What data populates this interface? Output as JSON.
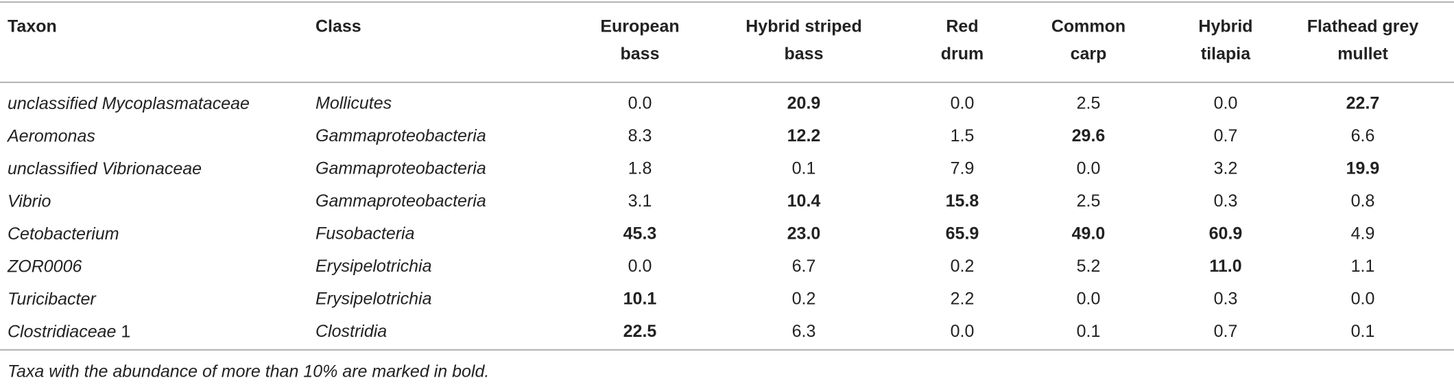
{
  "table": {
    "header": [
      {
        "lines": [
          "Taxon"
        ]
      },
      {
        "lines": [
          "Class"
        ]
      },
      {
        "lines": [
          "European",
          "bass"
        ]
      },
      {
        "lines": [
          "Hybrid striped",
          "bass"
        ]
      },
      {
        "lines": [
          "Red",
          "drum"
        ]
      },
      {
        "lines": [
          "Common",
          "carp"
        ]
      },
      {
        "lines": [
          "Hybrid",
          "tilapia"
        ]
      },
      {
        "lines": [
          "Flathead grey",
          "mullet"
        ]
      }
    ],
    "rows": [
      {
        "taxon": [
          {
            "text": "unclassified Mycoplasmataceae",
            "italic": true
          }
        ],
        "class": "Mollicutes",
        "values": [
          "0.0",
          "20.9",
          "0.0",
          "2.5",
          "0.0",
          "22.7"
        ],
        "bold": [
          false,
          true,
          false,
          false,
          false,
          true
        ]
      },
      {
        "taxon": [
          {
            "text": "Aeromonas",
            "italic": true
          }
        ],
        "class": "Gammaproteobacteria",
        "values": [
          "8.3",
          "12.2",
          "1.5",
          "29.6",
          "0.7",
          "6.6"
        ],
        "bold": [
          false,
          true,
          false,
          true,
          false,
          false
        ]
      },
      {
        "taxon": [
          {
            "text": "unclassified Vibrionaceae",
            "italic": true
          }
        ],
        "class": "Gammaproteobacteria",
        "values": [
          "1.8",
          "0.1",
          "7.9",
          "0.0",
          "3.2",
          "19.9"
        ],
        "bold": [
          false,
          false,
          false,
          false,
          false,
          true
        ]
      },
      {
        "taxon": [
          {
            "text": "Vibrio",
            "italic": true
          }
        ],
        "class": "Gammaproteobacteria",
        "values": [
          "3.1",
          "10.4",
          "15.8",
          "2.5",
          "0.3",
          "0.8"
        ],
        "bold": [
          false,
          true,
          true,
          false,
          false,
          false
        ]
      },
      {
        "taxon": [
          {
            "text": "Cetobacterium",
            "italic": true
          }
        ],
        "class": "Fusobacteria",
        "values": [
          "45.3",
          "23.0",
          "65.9",
          "49.0",
          "60.9",
          "4.9"
        ],
        "bold": [
          true,
          true,
          true,
          true,
          true,
          false
        ]
      },
      {
        "taxon": [
          {
            "text": "ZOR0006",
            "italic": true
          }
        ],
        "class": "Erysipelotrichia",
        "values": [
          "0.0",
          "6.7",
          "0.2",
          "5.2",
          "11.0",
          "1.1"
        ],
        "bold": [
          false,
          false,
          false,
          false,
          true,
          false
        ]
      },
      {
        "taxon": [
          {
            "text": "Turicibacter",
            "italic": true
          }
        ],
        "class": "Erysipelotrichia",
        "values": [
          "10.1",
          "0.2",
          "2.2",
          "0.0",
          "0.3",
          "0.0"
        ],
        "bold": [
          true,
          false,
          false,
          false,
          false,
          false
        ]
      },
      {
        "taxon": [
          {
            "text": "Clostridiaceae",
            "italic": true
          },
          {
            "text": "1",
            "italic": false
          }
        ],
        "class": "Clostridia",
        "values": [
          "22.5",
          "6.3",
          "0.0",
          "0.1",
          "0.7",
          "0.1"
        ],
        "bold": [
          true,
          false,
          false,
          false,
          false,
          false
        ]
      }
    ],
    "footnote": "Taxa with the abundance of more than 10% are marked in bold."
  }
}
